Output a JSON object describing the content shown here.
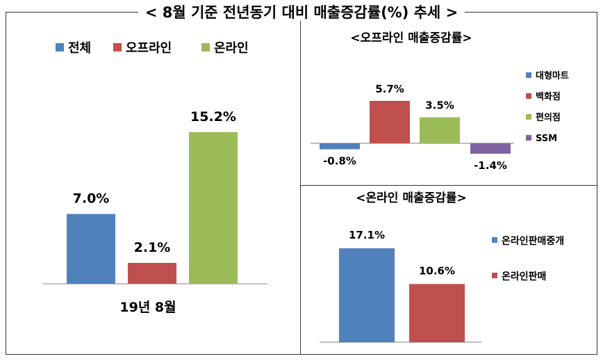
{
  "title": "< 8월 기준 전년동기 대비 매출증감률(%) 추세 >",
  "colors": {
    "blue": "#4f81bd",
    "red": "#c0504d",
    "green": "#9bbb59",
    "purple": "#8064a2"
  },
  "chart_data": [
    {
      "type": "bar",
      "title": "",
      "categories": [
        "19년 8월"
      ],
      "series": [
        {
          "name": "전체",
          "values": [
            7.0
          ],
          "label": "7.0%",
          "color": "#4f81bd"
        },
        {
          "name": "오프라인",
          "values": [
            2.1
          ],
          "label": "2.1%",
          "color": "#c0504d"
        },
        {
          "name": "온라인",
          "values": [
            15.2
          ],
          "label": "15.2%",
          "color": "#9bbb59"
        }
      ],
      "xlabel": "19년 8월",
      "legend": "top",
      "ylim": [
        0,
        15.2
      ],
      "grid": false
    },
    {
      "type": "bar",
      "title": "<오프라인 매출증감률>",
      "series": [
        {
          "name": "대형마트",
          "values": [
            -0.8
          ],
          "label": "-0.8%",
          "color": "#4f81bd"
        },
        {
          "name": "백화점",
          "values": [
            5.7
          ],
          "label": "5.7%",
          "color": "#c0504d"
        },
        {
          "name": "편의점",
          "values": [
            3.5
          ],
          "label": "3.5%",
          "color": "#9bbb59"
        },
        {
          "name": "SSM",
          "values": [
            -1.4
          ],
          "label": "-1.4%",
          "color": "#8064a2"
        }
      ],
      "legend": "right",
      "grid": false
    },
    {
      "type": "bar",
      "title": "<온라인 매출증감률>",
      "series": [
        {
          "name": "온라인판매중개",
          "values": [
            17.1
          ],
          "label": "17.1%",
          "color": "#4f81bd"
        },
        {
          "name": "온라인판매",
          "values": [
            10.6
          ],
          "label": "10.6%",
          "color": "#c0504d"
        }
      ],
      "legend": "right",
      "grid": false
    }
  ]
}
